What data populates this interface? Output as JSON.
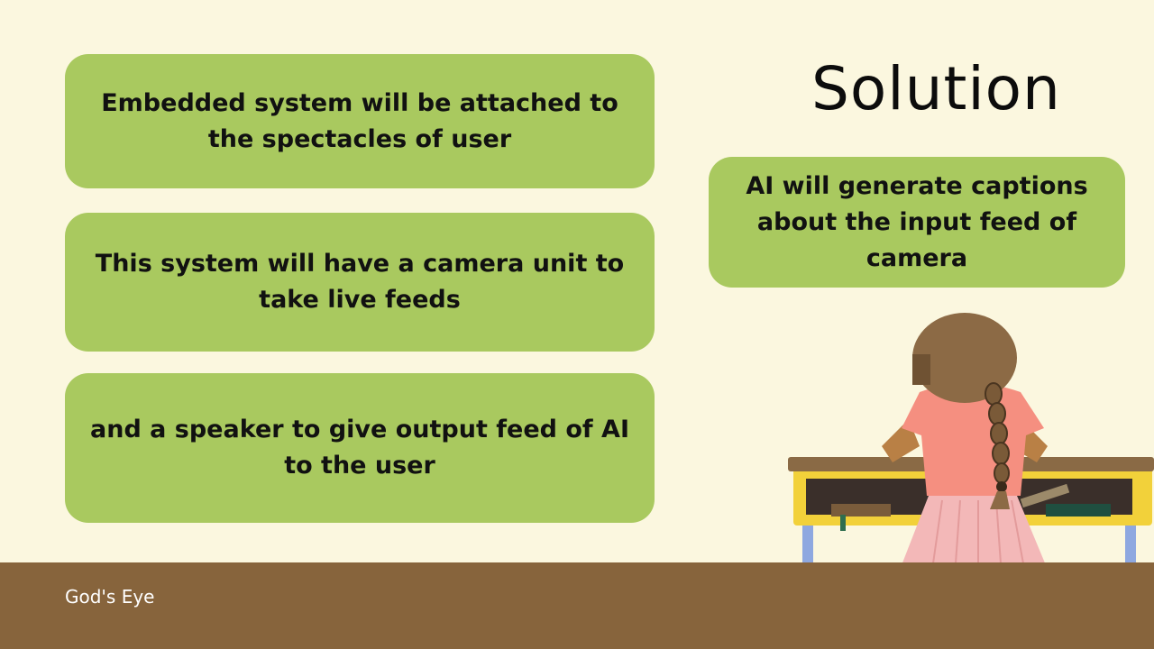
{
  "slide": {
    "title": "Solution",
    "cards": [
      "Embedded system will be attached to the spectacles of user",
      "This system will have a camera unit to take live feeds",
      "and a speaker to give output feed of AI to the user",
      "AI will generate captions about the input feed of camera"
    ],
    "footer_label": "God's Eye"
  },
  "colors": {
    "background": "#fbf7df",
    "card": "#a9c95f",
    "footer": "#87643c"
  },
  "icons": {
    "illustration": "girl-at-desk-illustration"
  }
}
